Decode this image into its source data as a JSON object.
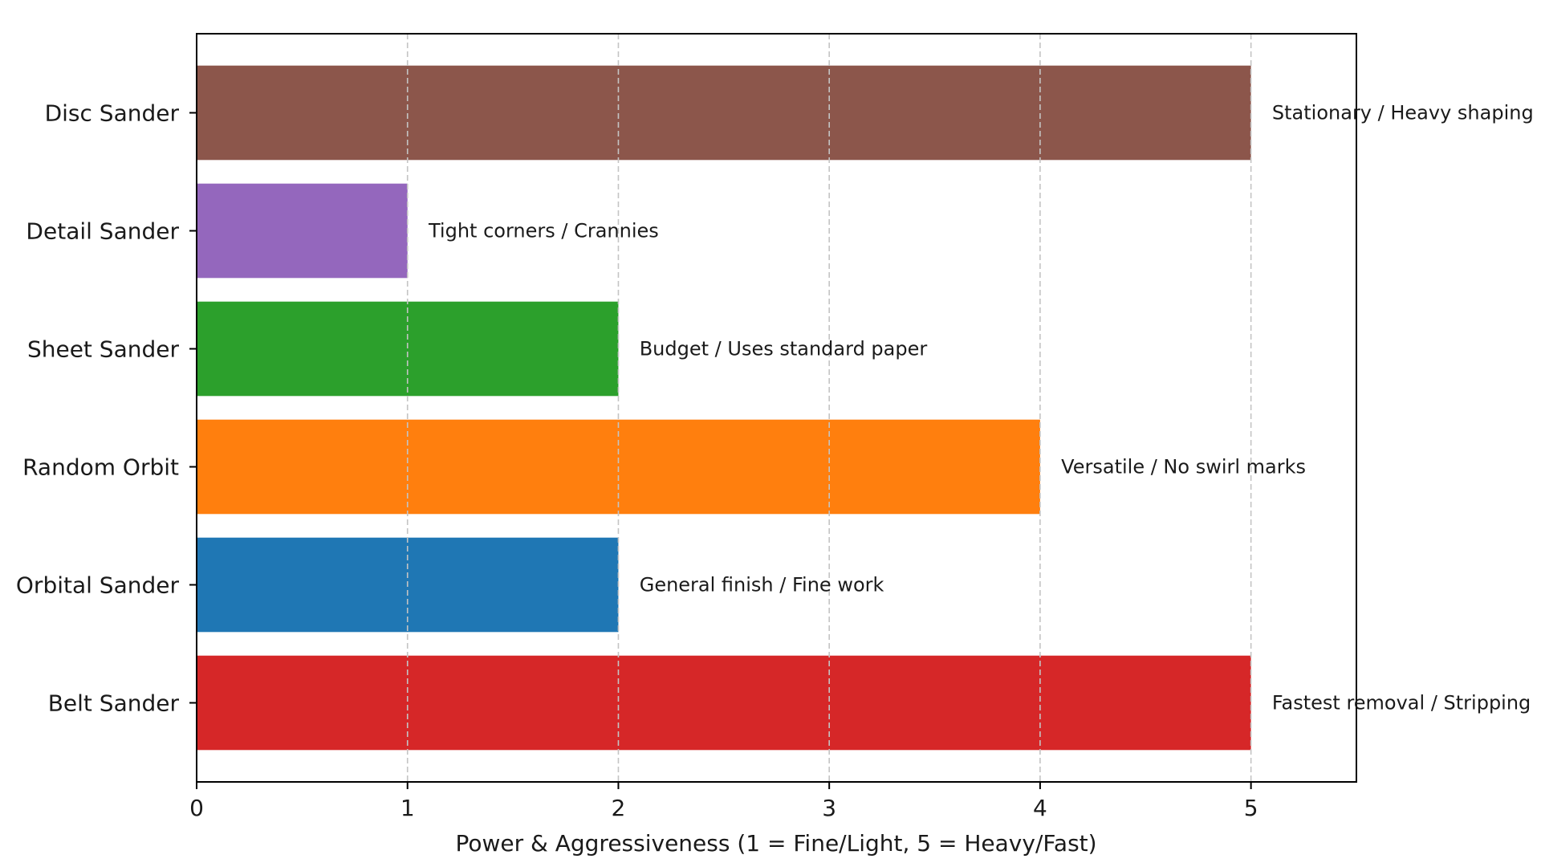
{
  "chart_data": {
    "type": "bar",
    "orientation": "horizontal",
    "title": "",
    "xlabel": "Power & Aggressiveness (1 = Fine/Light, 5 = Heavy/Fast)",
    "ylabel": "",
    "xlim": [
      0,
      5.5
    ],
    "xticks": [
      0,
      1,
      2,
      3,
      4,
      5
    ],
    "xtick_labels": [
      "0",
      "1",
      "2",
      "3",
      "4",
      "5"
    ],
    "grid": {
      "x": true,
      "y": false,
      "style": "dashed"
    },
    "legend": null,
    "categories": [
      "Belt Sander",
      "Orbital Sander",
      "Random Orbit",
      "Sheet Sander",
      "Detail Sander",
      "Disc Sander"
    ],
    "values": [
      5,
      2,
      4,
      2,
      1,
      5
    ],
    "colors": [
      "#d62728",
      "#1f77b4",
      "#ff7f0e",
      "#2ca02c",
      "#9467bd",
      "#8c564b"
    ],
    "annotations": [
      "Fastest removal / Stripping",
      "General finish / Fine work",
      "Versatile / No swirl marks",
      "Budget / Uses standard paper",
      "Tight corners / Crannies",
      "Stationary / Heavy shaping"
    ]
  }
}
